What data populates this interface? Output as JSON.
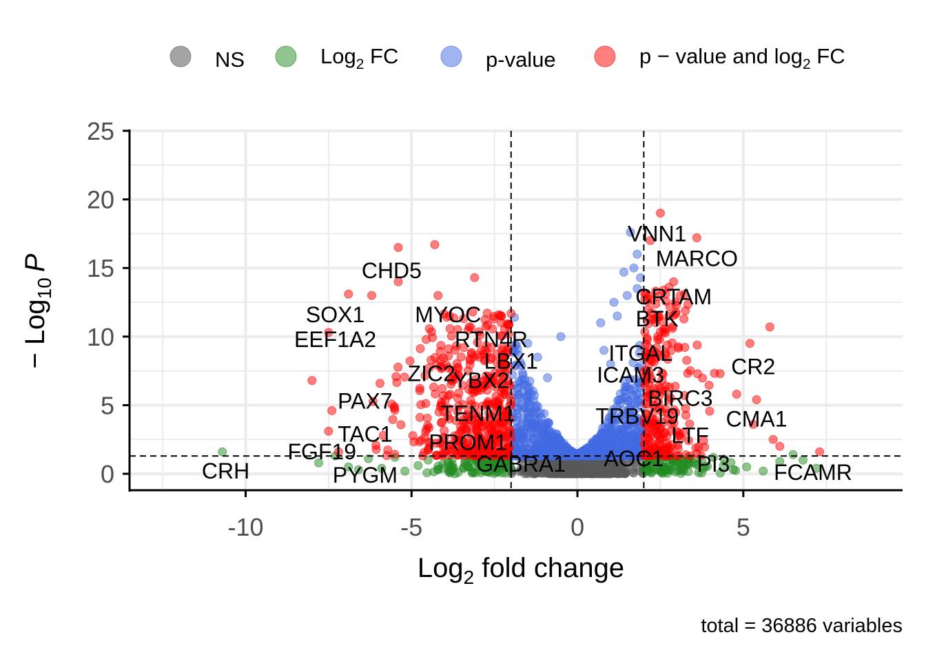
{
  "chart_data": {
    "type": "scatter",
    "title": "",
    "xlabel": {
      "base": "Log",
      "sub": "2",
      "rest": " fold change"
    },
    "ylabel": {
      "prefix": "− Log",
      "sub": "10",
      "italic": "P"
    },
    "caption": "total = 36886 variables",
    "xlim": [
      -13.5,
      9.8
    ],
    "ylim": [
      -1.2,
      25
    ],
    "x_ticks": [
      -10,
      -5,
      0,
      5
    ],
    "x_tick_labels": [
      "-10",
      "-5",
      "0",
      "5"
    ],
    "y_ticks": [
      0,
      5,
      10,
      15,
      20,
      25
    ],
    "y_tick_labels": [
      "0",
      "5",
      "10",
      "15",
      "20",
      "25"
    ],
    "fc_cutoff": 2,
    "p_cutoff_log10": 1.3,
    "grid": true,
    "legend_position": "top",
    "legend": [
      {
        "key": "NS",
        "label": "NS",
        "color": "#595959"
      },
      {
        "key": "FC",
        "label": "Log",
        "sub": "2",
        "rest": " FC",
        "color": "#228b22"
      },
      {
        "key": "P",
        "label": "p-value",
        "color": "#4169e1"
      },
      {
        "key": "FCP",
        "label": "p − value and log",
        "sub": "2",
        "rest": " FC",
        "color": "#ff0000"
      }
    ],
    "colors": {
      "NS": "#595959",
      "FC": "#228b22",
      "P": "#4169e1",
      "FCP": "#ff0000"
    },
    "series": [
      {
        "name": "NS",
        "generated_count": 1200,
        "x_range": [
          -2,
          2
        ],
        "y_range": [
          0,
          1.3
        ]
      },
      {
        "name": "Log2 FC",
        "points": [
          [
            -10.7,
            1.6
          ],
          [
            -7.8,
            0.8
          ],
          [
            -7.3,
            1.3
          ],
          [
            -6.9,
            0.5
          ],
          [
            -6.6,
            0.3
          ],
          [
            -6.3,
            1.1
          ],
          [
            -5.9,
            0.4
          ],
          [
            -5.5,
            1.2
          ],
          [
            -5.2,
            0.2
          ],
          [
            -4.8,
            0.6
          ],
          [
            -4.5,
            1.0
          ],
          [
            -4.2,
            0.3
          ],
          [
            -3.9,
            0.8
          ],
          [
            -3.6,
            0.1
          ],
          [
            -3.3,
            0.5
          ],
          [
            -3.0,
            1.1
          ],
          [
            -2.7,
            0.2
          ],
          [
            -2.4,
            0.7
          ],
          [
            -2.2,
            0.4
          ],
          [
            -2.1,
            1.0
          ],
          [
            2.1,
            0.3
          ],
          [
            2.3,
            0.9
          ],
          [
            2.6,
            0.5
          ],
          [
            2.9,
            1.1
          ],
          [
            3.2,
            0.2
          ],
          [
            3.5,
            0.8
          ],
          [
            3.8,
            0.4
          ],
          [
            4.1,
            1.2
          ],
          [
            4.4,
            0.6
          ],
          [
            4.7,
            0.3
          ],
          [
            5.1,
            0.5
          ],
          [
            5.6,
            0.2
          ],
          [
            6.1,
            0.9
          ],
          [
            6.5,
            1.4
          ],
          [
            6.8,
            1.0
          ],
          [
            7.2,
            0.4
          ]
        ]
      },
      {
        "name": "p-value",
        "generated_count": 900,
        "x_range": [
          -2,
          2
        ],
        "y_range": [
          1.3,
          11
        ]
      },
      {
        "name": "p - value and log2 FC",
        "generated_count": 700,
        "points": [
          [
            -4.3,
            16.7
          ],
          [
            -5.4,
            16.5
          ],
          [
            -5.4,
            14.0
          ],
          [
            -3.1,
            14.3
          ],
          [
            -6.9,
            13.1
          ],
          [
            -6.2,
            13.0
          ],
          [
            -4.2,
            13.0
          ],
          [
            -7.5,
            10.3
          ],
          [
            -8.0,
            6.8
          ],
          [
            -7.4,
            4.6
          ],
          [
            -7.5,
            3.1
          ],
          [
            -7.2,
            1.6
          ],
          [
            2.5,
            19.0
          ],
          [
            2.2,
            17.0
          ],
          [
            3.6,
            17.2
          ],
          [
            2.9,
            14.0
          ],
          [
            3.1,
            13.0
          ],
          [
            5.8,
            10.7
          ],
          [
            5.2,
            9.5
          ],
          [
            4.3,
            7.3
          ],
          [
            4.8,
            5.8
          ],
          [
            5.4,
            5.4
          ],
          [
            5.3,
            3.6
          ],
          [
            5.9,
            2.5
          ],
          [
            6.1,
            2.0
          ],
          [
            7.3,
            1.6
          ]
        ]
      }
    ],
    "labels": [
      {
        "text": "VNN1",
        "x": 2.4,
        "y": 17.5
      },
      {
        "text": "MARCO",
        "x": 3.6,
        "y": 15.7
      },
      {
        "text": "CHD5",
        "x": -5.6,
        "y": 14.8
      },
      {
        "text": "CRTAM",
        "x": 2.9,
        "y": 12.9
      },
      {
        "text": "SOX1",
        "x": -7.3,
        "y": 11.6
      },
      {
        "text": "MYOC",
        "x": -3.9,
        "y": 11.6
      },
      {
        "text": "BTK",
        "x": 2.4,
        "y": 11.3
      },
      {
        "text": "EEF1A2",
        "x": -7.3,
        "y": 9.8
      },
      {
        "text": "RTN4R",
        "x": -2.6,
        "y": 9.8
      },
      {
        "text": "LBX1",
        "x": -2.0,
        "y": 8.2
      },
      {
        "text": "ITGAL",
        "x": 1.9,
        "y": 8.8
      },
      {
        "text": "CR2",
        "x": 5.3,
        "y": 7.8
      },
      {
        "text": "ZIC2",
        "x": -4.4,
        "y": 7.3
      },
      {
        "text": "ICAM3",
        "x": 1.6,
        "y": 7.2
      },
      {
        "text": "YBX2",
        "x": -2.9,
        "y": 6.8
      },
      {
        "text": "PAX7",
        "x": -6.4,
        "y": 5.3
      },
      {
        "text": "BIRC3",
        "x": 3.1,
        "y": 5.5
      },
      {
        "text": "TENM1",
        "x": -3.0,
        "y": 4.4
      },
      {
        "text": "TRBV19",
        "x": 1.8,
        "y": 4.2
      },
      {
        "text": "CMA1",
        "x": 5.4,
        "y": 4.0
      },
      {
        "text": "TAC1",
        "x": -6.4,
        "y": 2.9
      },
      {
        "text": "LTF",
        "x": 3.4,
        "y": 2.8
      },
      {
        "text": "PROM1",
        "x": -3.3,
        "y": 2.3
      },
      {
        "text": "FGF19",
        "x": -7.7,
        "y": 1.6
      },
      {
        "text": "AOC1",
        "x": 1.7,
        "y": 1.1
      },
      {
        "text": "GABRA1",
        "x": -1.7,
        "y": 0.7
      },
      {
        "text": "PI3",
        "x": 4.1,
        "y": 0.7
      },
      {
        "text": "CRH",
        "x": -10.6,
        "y": 0.2
      },
      {
        "text": "PYGM",
        "x": -6.4,
        "y": -0.1
      },
      {
        "text": "FCAMR",
        "x": 7.1,
        "y": 0.1
      }
    ]
  }
}
